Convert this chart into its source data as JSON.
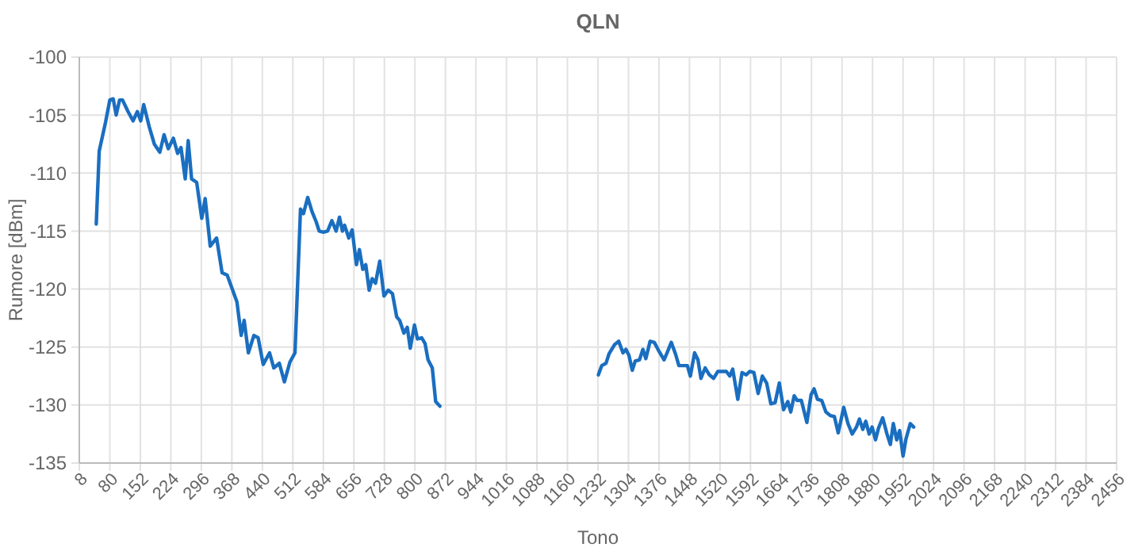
{
  "chart_data": {
    "type": "line",
    "title": "QLN",
    "xlabel": "Tono",
    "ylabel": "Rumore [dBm]",
    "xlim": [
      8,
      2456
    ],
    "xticks": [
      8,
      80,
      152,
      224,
      296,
      368,
      440,
      512,
      584,
      656,
      728,
      800,
      872,
      944,
      1016,
      1088,
      1160,
      1232,
      1304,
      1376,
      1448,
      1520,
      1592,
      1664,
      1736,
      1808,
      1880,
      1952,
      2024,
      2096,
      2168,
      2240,
      2312,
      2384,
      2456
    ],
    "ylim": [
      -135,
      -100
    ],
    "yticks": [
      -135,
      -130,
      -125,
      -120,
      -115,
      -110,
      -105,
      -100
    ],
    "grid": true,
    "marker": "none",
    "line_style": "solid",
    "series": [
      {
        "color": "#1a6ec0",
        "x": [
          48,
          55,
          70,
          80,
          88,
          95,
          103,
          110,
          123,
          135,
          145,
          153,
          160,
          173,
          185,
          198,
          208,
          218,
          230,
          240,
          248,
          258,
          265,
          273,
          285,
          297,
          305,
          317,
          332,
          345,
          357,
          380,
          390,
          397,
          407,
          420,
          430,
          442,
          457,
          467,
          480,
          492,
          505,
          517,
          530,
          537,
          547,
          557,
          567,
          574,
          584,
          594,
          604,
          614,
          622,
          629,
          634,
          644,
          652,
          662,
          669,
          677,
          684,
          692,
          699,
          707,
          717,
          727,
          737,
          747,
          757,
          764,
          774,
          782,
          789,
          799,
          806,
          816,
          824,
          831,
          841,
          849,
          859,
          1000,
          1233,
          1241,
          1251,
          1258,
          1271,
          1281,
          1291,
          1298,
          1305,
          1313,
          1320,
          1330,
          1338,
          1345,
          1355,
          1365,
          1375,
          1388,
          1395,
          1405,
          1415,
          1423,
          1433,
          1443,
          1450,
          1460,
          1468,
          1475,
          1485,
          1495,
          1505,
          1515,
          1525,
          1535,
          1543,
          1550,
          1562,
          1572,
          1582,
          1590,
          1600,
          1610,
          1620,
          1630,
          1640,
          1650,
          1660,
          1670,
          1680,
          1687,
          1695,
          1702,
          1712,
          1725,
          1735,
          1742,
          1750,
          1760,
          1770,
          1780,
          1790,
          1799,
          1812,
          1822,
          1832,
          1842,
          1849,
          1857,
          1864,
          1872,
          1879,
          1887,
          1894,
          1904,
          1914,
          1922,
          1929,
          1937,
          1944,
          1952,
          1959,
          1969,
          1977
        ],
        "values": [
          -114.4,
          -108.1,
          -105.6,
          -103.7,
          -103.6,
          -105.0,
          -103.7,
          -103.7,
          -104.7,
          -105.5,
          -104.7,
          -105.5,
          -104.1,
          -106.0,
          -107.5,
          -108.2,
          -106.7,
          -107.9,
          -107.0,
          -108.3,
          -107.8,
          -110.5,
          -107.2,
          -110.5,
          -110.8,
          -113.9,
          -112.2,
          -116.3,
          -115.6,
          -118.6,
          -118.8,
          -121.1,
          -124.0,
          -122.7,
          -125.5,
          -124.0,
          -124.2,
          -126.5,
          -125.5,
          -126.8,
          -126.4,
          -128.0,
          -126.3,
          -125.5,
          -113.1,
          -113.5,
          -112.1,
          -113.3,
          -114.2,
          -115.0,
          -115.1,
          -115.0,
          -114.1,
          -115.0,
          -113.8,
          -115.0,
          -114.5,
          -115.6,
          -114.9,
          -117.9,
          -116.6,
          -118.3,
          -117.9,
          -120.1,
          -119.1,
          -119.5,
          -117.6,
          -120.6,
          -120.1,
          -120.4,
          -122.4,
          -122.7,
          -123.8,
          -123.3,
          -125.1,
          -123.1,
          -124.3,
          -124.2,
          -124.7,
          -126.1,
          -126.8,
          -129.7,
          -130.1,
          null,
          -127.4,
          -126.6,
          -126.4,
          -125.6,
          -124.8,
          -124.5,
          -125.5,
          -125.2,
          -125.7,
          -127.0,
          -126.2,
          -126.1,
          -125.2,
          -126.0,
          -124.5,
          -124.6,
          -125.3,
          -126.1,
          -125.5,
          -124.6,
          -125.6,
          -126.6,
          -126.6,
          -126.6,
          -127.5,
          -125.5,
          -126.1,
          -127.7,
          -126.8,
          -127.4,
          -127.7,
          -127.1,
          -127.1,
          -127.1,
          -127.5,
          -126.9,
          -129.5,
          -127.2,
          -127.4,
          -127.1,
          -127.2,
          -129.0,
          -127.5,
          -128.1,
          -129.9,
          -129.8,
          -128.1,
          -130.4,
          -129.7,
          -130.6,
          -129.2,
          -129.6,
          -129.6,
          -131.5,
          -129.1,
          -128.6,
          -129.5,
          -129.6,
          -130.6,
          -130.9,
          -131.0,
          -132.4,
          -130.2,
          -131.6,
          -132.5,
          -131.9,
          -131.2,
          -132.1,
          -131.4,
          -132.5,
          -131.9,
          -133.0,
          -132.0,
          -131.1,
          -132.5,
          -133.4,
          -131.6,
          -133.0,
          -132.2,
          -134.4,
          -132.9,
          -131.6,
          -131.9
        ]
      }
    ]
  }
}
